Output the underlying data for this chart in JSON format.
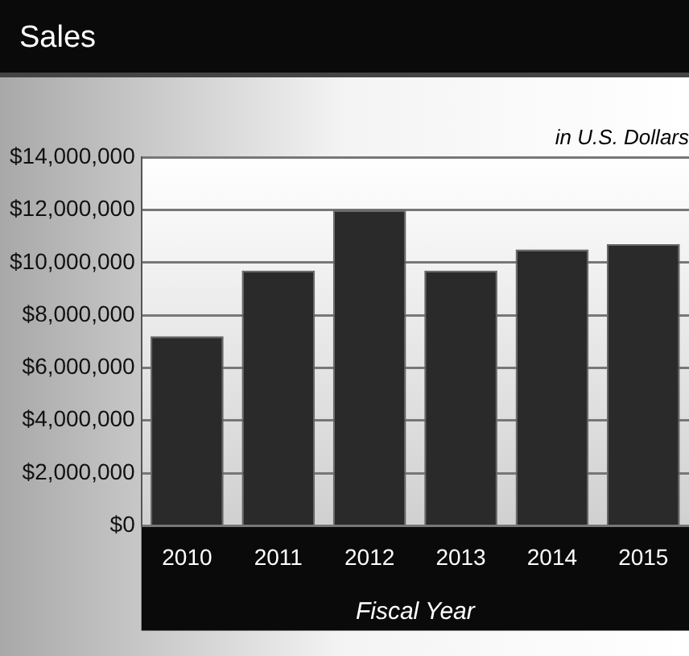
{
  "chart_data": {
    "type": "bar",
    "title": "Sales",
    "subtitle": "in U.S. Dollars",
    "xlabel": "Fiscal Year",
    "categories": [
      "2010",
      "2011",
      "2012",
      "2013",
      "2014",
      "2015"
    ],
    "values": [
      7200000,
      9700000,
      12000000,
      9700000,
      10500000,
      10700000
    ],
    "color": "#2a2a2a",
    "ylim": [
      0,
      14000000
    ],
    "yticks": [
      {
        "value": 0,
        "label": "$0"
      },
      {
        "value": 2000000,
        "label": "$2,000,000"
      },
      {
        "value": 4000000,
        "label": "$4,000,000"
      },
      {
        "value": 6000000,
        "label": "$6,000,000"
      },
      {
        "value": 8000000,
        "label": "$8,000,000"
      },
      {
        "value": 10000000,
        "label": "$10,000,000"
      },
      {
        "value": 12000000,
        "label": "$12,000,000"
      },
      {
        "value": 14000000,
        "label": "$14,000,000"
      }
    ],
    "grid": "y"
  }
}
